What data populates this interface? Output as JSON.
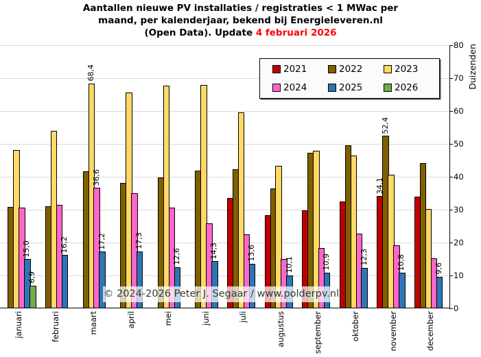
{
  "title": {
    "line1": "Aantallen nieuwe PV installaties / registraties < 1 MWac per",
    "line2": "maand, per kalenderjaar, bekend bij Energieleveren.nl",
    "line3_prefix": "(Open Data). Update ",
    "line3_highlight": "4 februari 2026",
    "highlight_color": "#ff0000"
  },
  "watermark": "© 2024-2026  Peter J. Segaar / www.polderpv.nl",
  "y_axis": {
    "title": "Duizenden",
    "ticks": [
      0,
      10,
      20,
      30,
      40,
      50,
      60,
      70,
      80
    ]
  },
  "chart_data": {
    "type": "bar",
    "title": "Aantallen nieuwe PV installaties / registraties < 1 MWac per maand, per kalenderjaar, bekend bij Energieleveren.nl (Open Data). Update 4 februari 2026",
    "xlabel": "",
    "ylabel": "Duizenden",
    "ylim": [
      0,
      80
    ],
    "grid": true,
    "legend_position": "top-right-overlay",
    "categories": [
      "januari",
      "februari",
      "maart",
      "april",
      "mei",
      "juni",
      "juli",
      "augustus",
      "september",
      "oktober",
      "november",
      "december"
    ],
    "series": [
      {
        "name": "2021",
        "color": "#c00000",
        "values": [
          null,
          null,
          null,
          null,
          null,
          null,
          33.6,
          28.4,
          29.8,
          32.5,
          34.1,
          33.9
        ],
        "point_labels": [
          null,
          null,
          null,
          null,
          null,
          null,
          null,
          null,
          null,
          null,
          "34,1",
          null
        ]
      },
      {
        "name": "2022",
        "color": "#7f6000",
        "values": [
          30.8,
          31.0,
          41.6,
          38.1,
          39.8,
          41.8,
          42.3,
          36.4,
          47.3,
          49.5,
          52.4,
          44.1
        ],
        "point_labels": [
          null,
          null,
          null,
          null,
          null,
          null,
          null,
          null,
          null,
          null,
          "52,4",
          null
        ]
      },
      {
        "name": "2023",
        "color": "#ffd966",
        "values": [
          48.1,
          54.0,
          68.4,
          65.6,
          67.8,
          68.0,
          59.6,
          43.3,
          47.9,
          46.4,
          40.6,
          30.2
        ],
        "point_labels": [
          null,
          null,
          "68,4",
          null,
          null,
          null,
          null,
          null,
          null,
          null,
          null,
          null
        ]
      },
      {
        "name": "2024",
        "color": "#ff66cc",
        "values": [
          30.7,
          31.4,
          36.6,
          34.9,
          30.6,
          25.9,
          22.5,
          14.9,
          18.4,
          22.8,
          19.2,
          15.3
        ],
        "point_labels": [
          null,
          null,
          "36,6",
          null,
          null,
          null,
          null,
          null,
          null,
          null,
          null,
          null
        ]
      },
      {
        "name": "2025",
        "color": "#2e75b6",
        "values": [
          15.0,
          16.2,
          17.2,
          17.3,
          12.6,
          14.3,
          13.6,
          10.1,
          10.9,
          12.3,
          10.8,
          9.6
        ],
        "point_labels": [
          "15,0",
          "16,2",
          "17,2",
          "17,3",
          "12,6",
          "14,3",
          "13,6",
          "10,1",
          "10,9",
          "12,3",
          "10,8",
          "9,6"
        ]
      },
      {
        "name": "2026",
        "color": "#70ad47",
        "values": [
          6.9,
          null,
          null,
          null,
          null,
          null,
          null,
          null,
          null,
          null,
          null,
          null
        ],
        "point_labels": [
          "6,9",
          null,
          null,
          null,
          null,
          null,
          null,
          null,
          null,
          null,
          null,
          null
        ]
      }
    ]
  }
}
